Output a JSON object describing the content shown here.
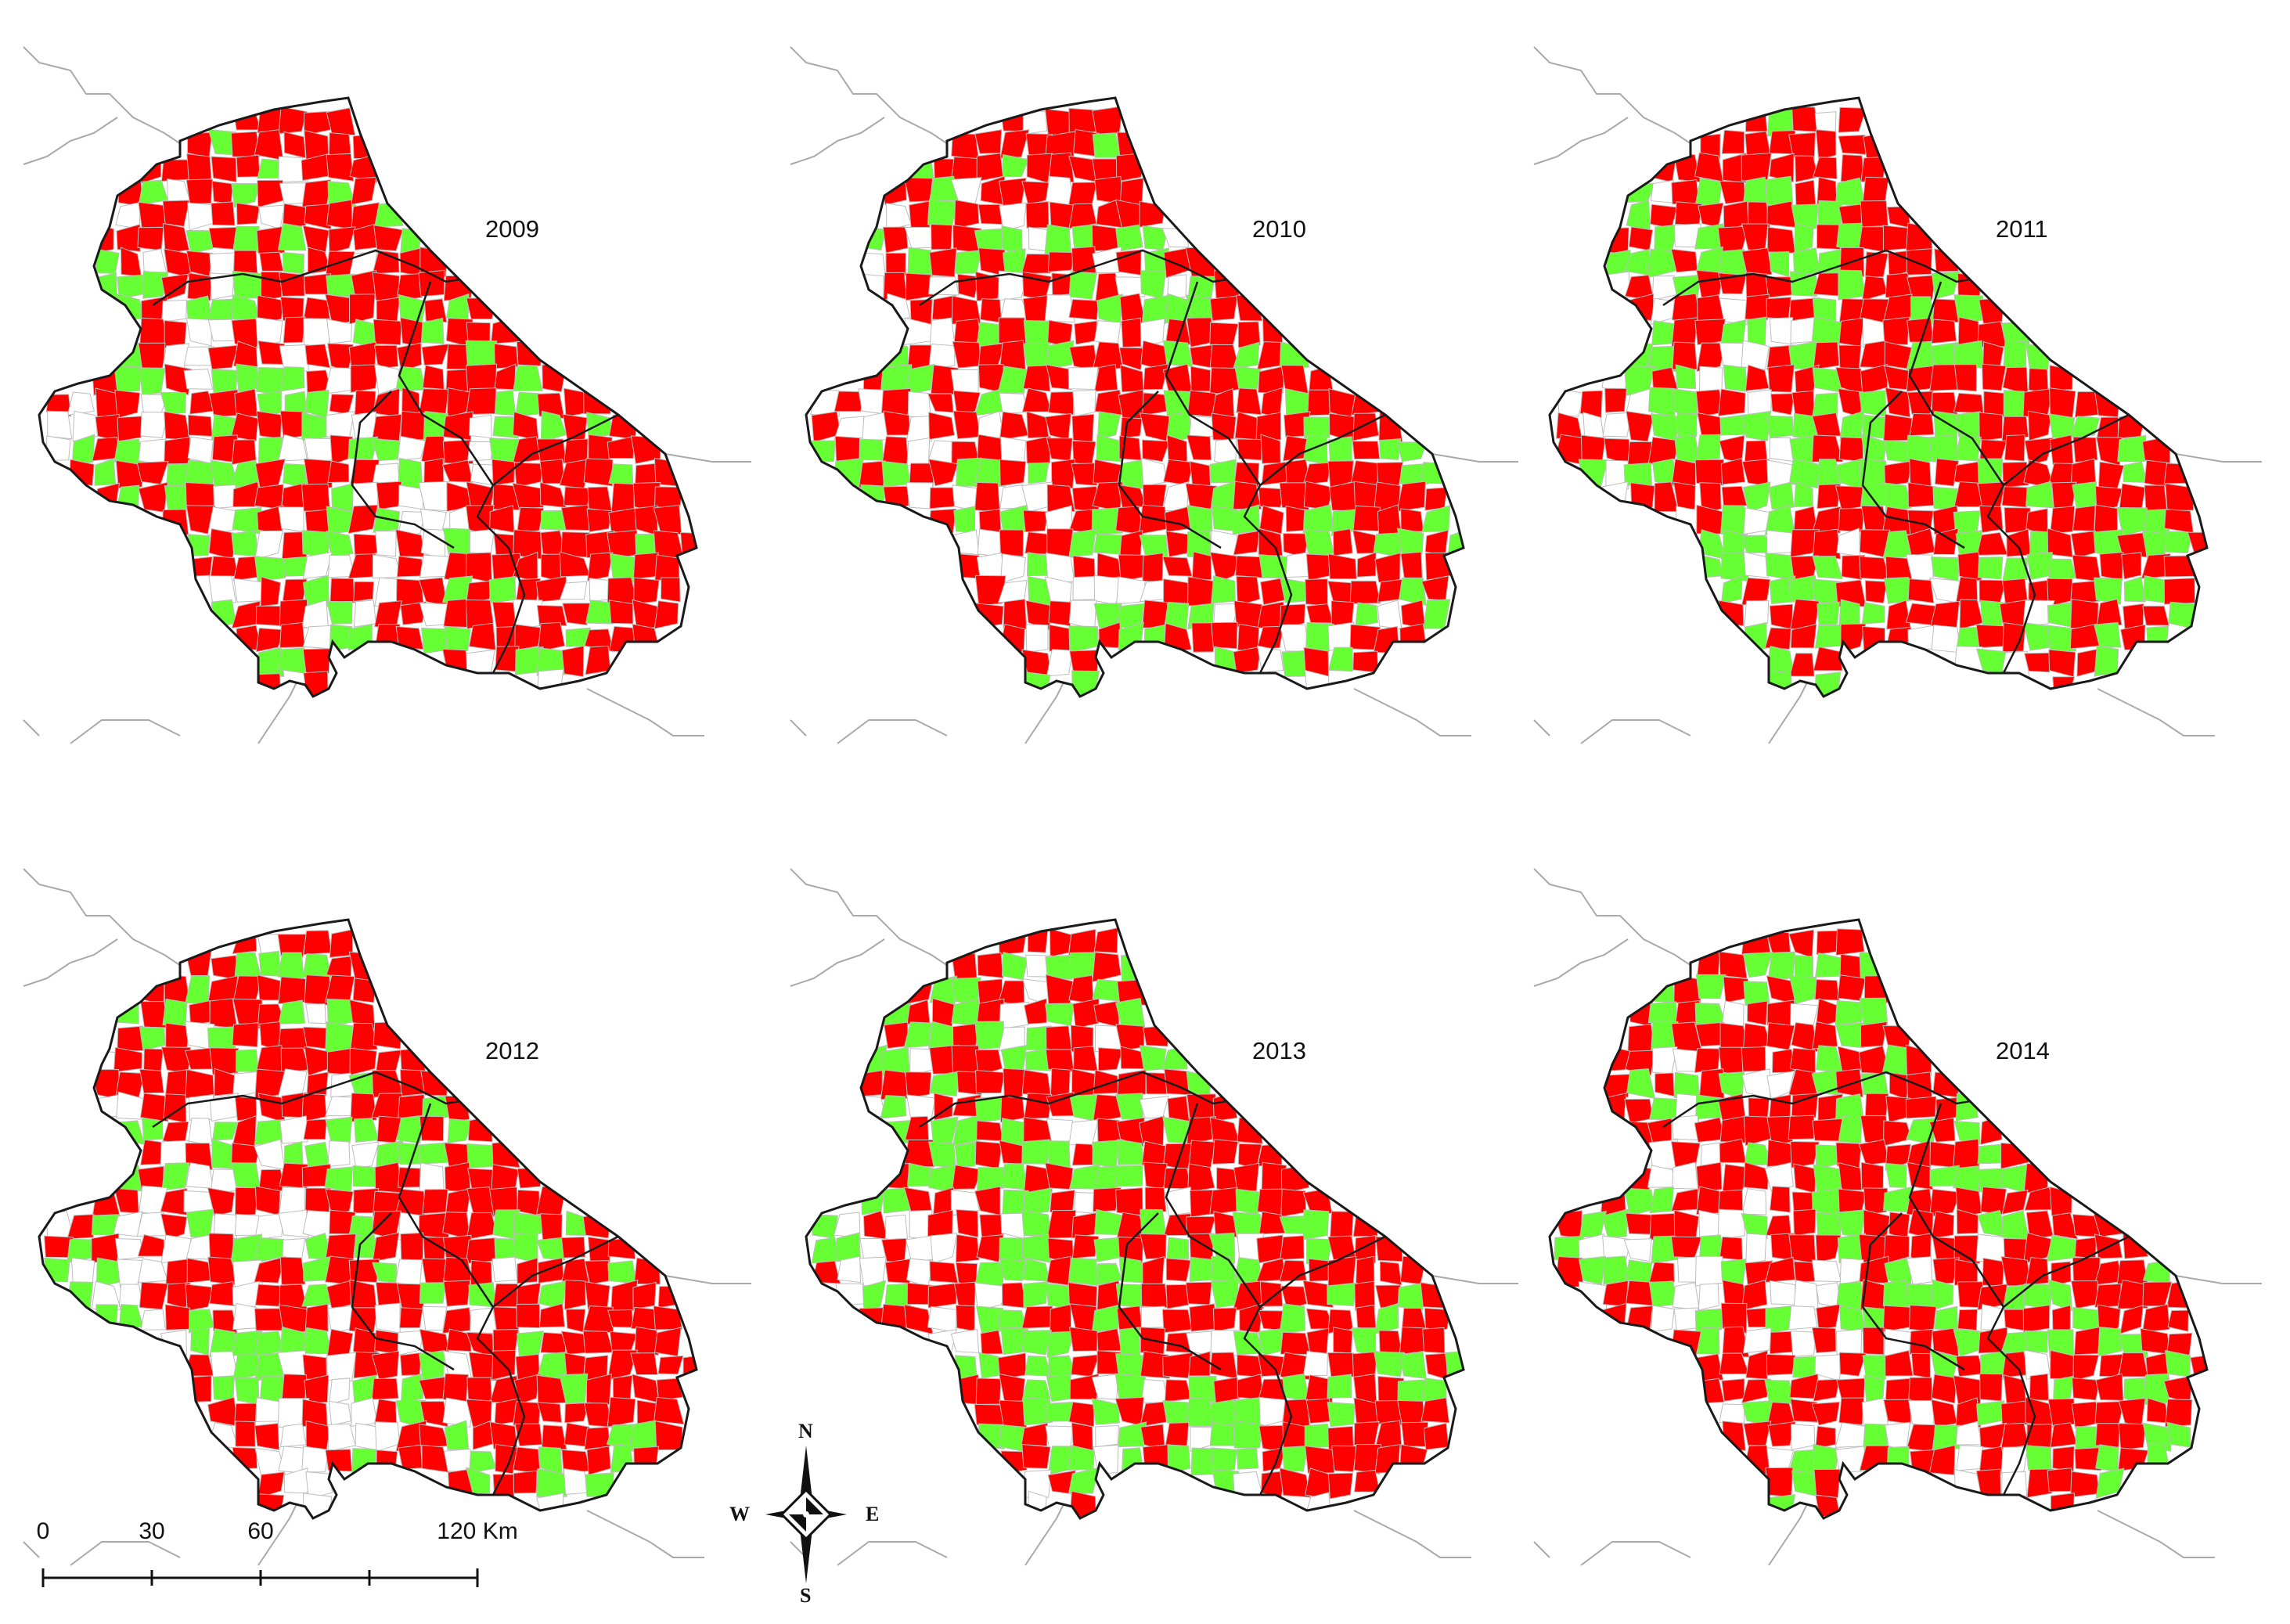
{
  "colors": {
    "red": "#ff0000",
    "green": "#66ff33",
    "white": "#ffffff",
    "region_border": "#1a1a1a",
    "municipal_line": "#bdbdbd",
    "context_line": "#a9a9a9"
  },
  "panels": [
    {
      "year": "2009",
      "seed": 11,
      "red_share": 0.55,
      "green_share": 0.25
    },
    {
      "year": "2010",
      "seed": 23,
      "red_share": 0.55,
      "green_share": 0.22
    },
    {
      "year": "2011",
      "seed": 37,
      "red_share": 0.52,
      "green_share": 0.3
    },
    {
      "year": "2012",
      "seed": 41,
      "red_share": 0.58,
      "green_share": 0.22
    },
    {
      "year": "2013",
      "seed": 53,
      "red_share": 0.55,
      "green_share": 0.28
    },
    {
      "year": "2014",
      "seed": 67,
      "red_share": 0.6,
      "green_share": 0.25
    }
  ],
  "scale_bar": {
    "labels": [
      "0",
      "30",
      "60",
      "120 Km"
    ]
  },
  "compass": {
    "north": "N",
    "south": "S",
    "east": "E",
    "west": "W",
    "icon": "north-arrow-icon"
  }
}
